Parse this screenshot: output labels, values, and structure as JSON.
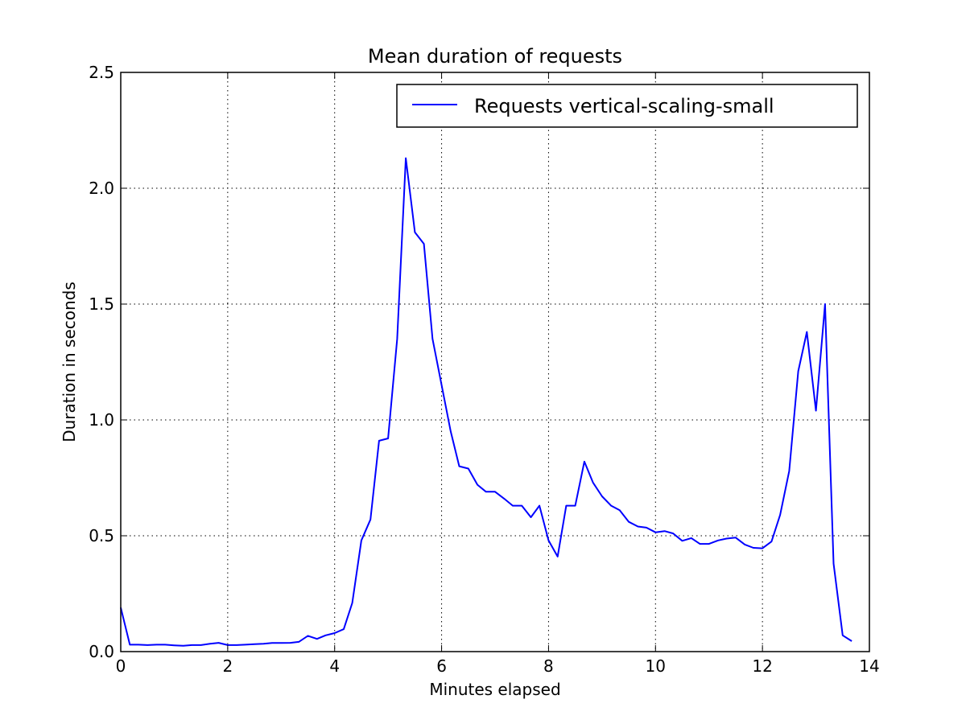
{
  "chart_data": {
    "type": "line",
    "title": "Mean duration of requests",
    "xlabel": "Minutes elapsed",
    "ylabel": "Duration in seconds",
    "xlim": [
      0,
      14
    ],
    "ylim": [
      0,
      2.5
    ],
    "xticks": [
      0,
      2,
      4,
      6,
      8,
      10,
      12,
      14
    ],
    "yticks": [
      0.0,
      0.5,
      1.0,
      1.5,
      2.0,
      2.5
    ],
    "xtick_labels": [
      "0",
      "2",
      "4",
      "6",
      "8",
      "10",
      "12",
      "14"
    ],
    "ytick_labels": [
      "0.0",
      "0.5",
      "1.0",
      "1.5",
      "2.0",
      "2.5"
    ],
    "grid": true,
    "legend_position": "top-right",
    "colors": {
      "series": "#0000ff"
    },
    "series": [
      {
        "name": "Requests vertical-scaling-small",
        "x": [
          0.0,
          0.17,
          0.33,
          0.5,
          0.67,
          0.83,
          1.0,
          1.17,
          1.33,
          1.5,
          1.67,
          1.83,
          2.0,
          2.17,
          2.33,
          2.5,
          2.67,
          2.83,
          3.0,
          3.17,
          3.33,
          3.5,
          3.67,
          3.83,
          4.0,
          4.17,
          4.33,
          4.5,
          4.67,
          4.83,
          5.0,
          5.17,
          5.33,
          5.5,
          5.67,
          5.83,
          6.0,
          6.17,
          6.33,
          6.5,
          6.67,
          6.83,
          7.0,
          7.17,
          7.33,
          7.5,
          7.67,
          7.83,
          8.0,
          8.17,
          8.33,
          8.5,
          8.67,
          8.83,
          9.0,
          9.17,
          9.33,
          9.5,
          9.67,
          9.83,
          10.0,
          10.17,
          10.33,
          10.5,
          10.67,
          10.83,
          11.0,
          11.17,
          11.33,
          11.5,
          11.67,
          11.83,
          12.0,
          12.17,
          12.33,
          12.5,
          12.67,
          12.83,
          13.0,
          13.17,
          13.33,
          13.5,
          13.67
        ],
        "y": [
          0.19,
          0.03,
          0.03,
          0.028,
          0.03,
          0.03,
          0.027,
          0.025,
          0.028,
          0.028,
          0.034,
          0.038,
          0.028,
          0.028,
          0.03,
          0.032,
          0.034,
          0.037,
          0.037,
          0.038,
          0.042,
          0.068,
          0.055,
          0.07,
          0.08,
          0.097,
          0.21,
          0.48,
          0.57,
          0.91,
          0.92,
          1.35,
          2.13,
          1.81,
          1.76,
          1.35,
          1.15,
          0.95,
          0.8,
          0.79,
          0.72,
          0.69,
          0.69,
          0.66,
          0.63,
          0.63,
          0.58,
          0.63,
          0.48,
          0.41,
          0.63,
          0.63,
          0.82,
          0.73,
          0.67,
          0.63,
          0.61,
          0.56,
          0.54,
          0.535,
          0.515,
          0.52,
          0.51,
          0.478,
          0.49,
          0.465,
          0.465,
          0.48,
          0.488,
          0.492,
          0.462,
          0.448,
          0.446,
          0.475,
          0.59,
          0.78,
          1.21,
          1.38,
          1.04,
          1.5,
          0.38,
          0.07,
          0.045
        ]
      }
    ]
  }
}
